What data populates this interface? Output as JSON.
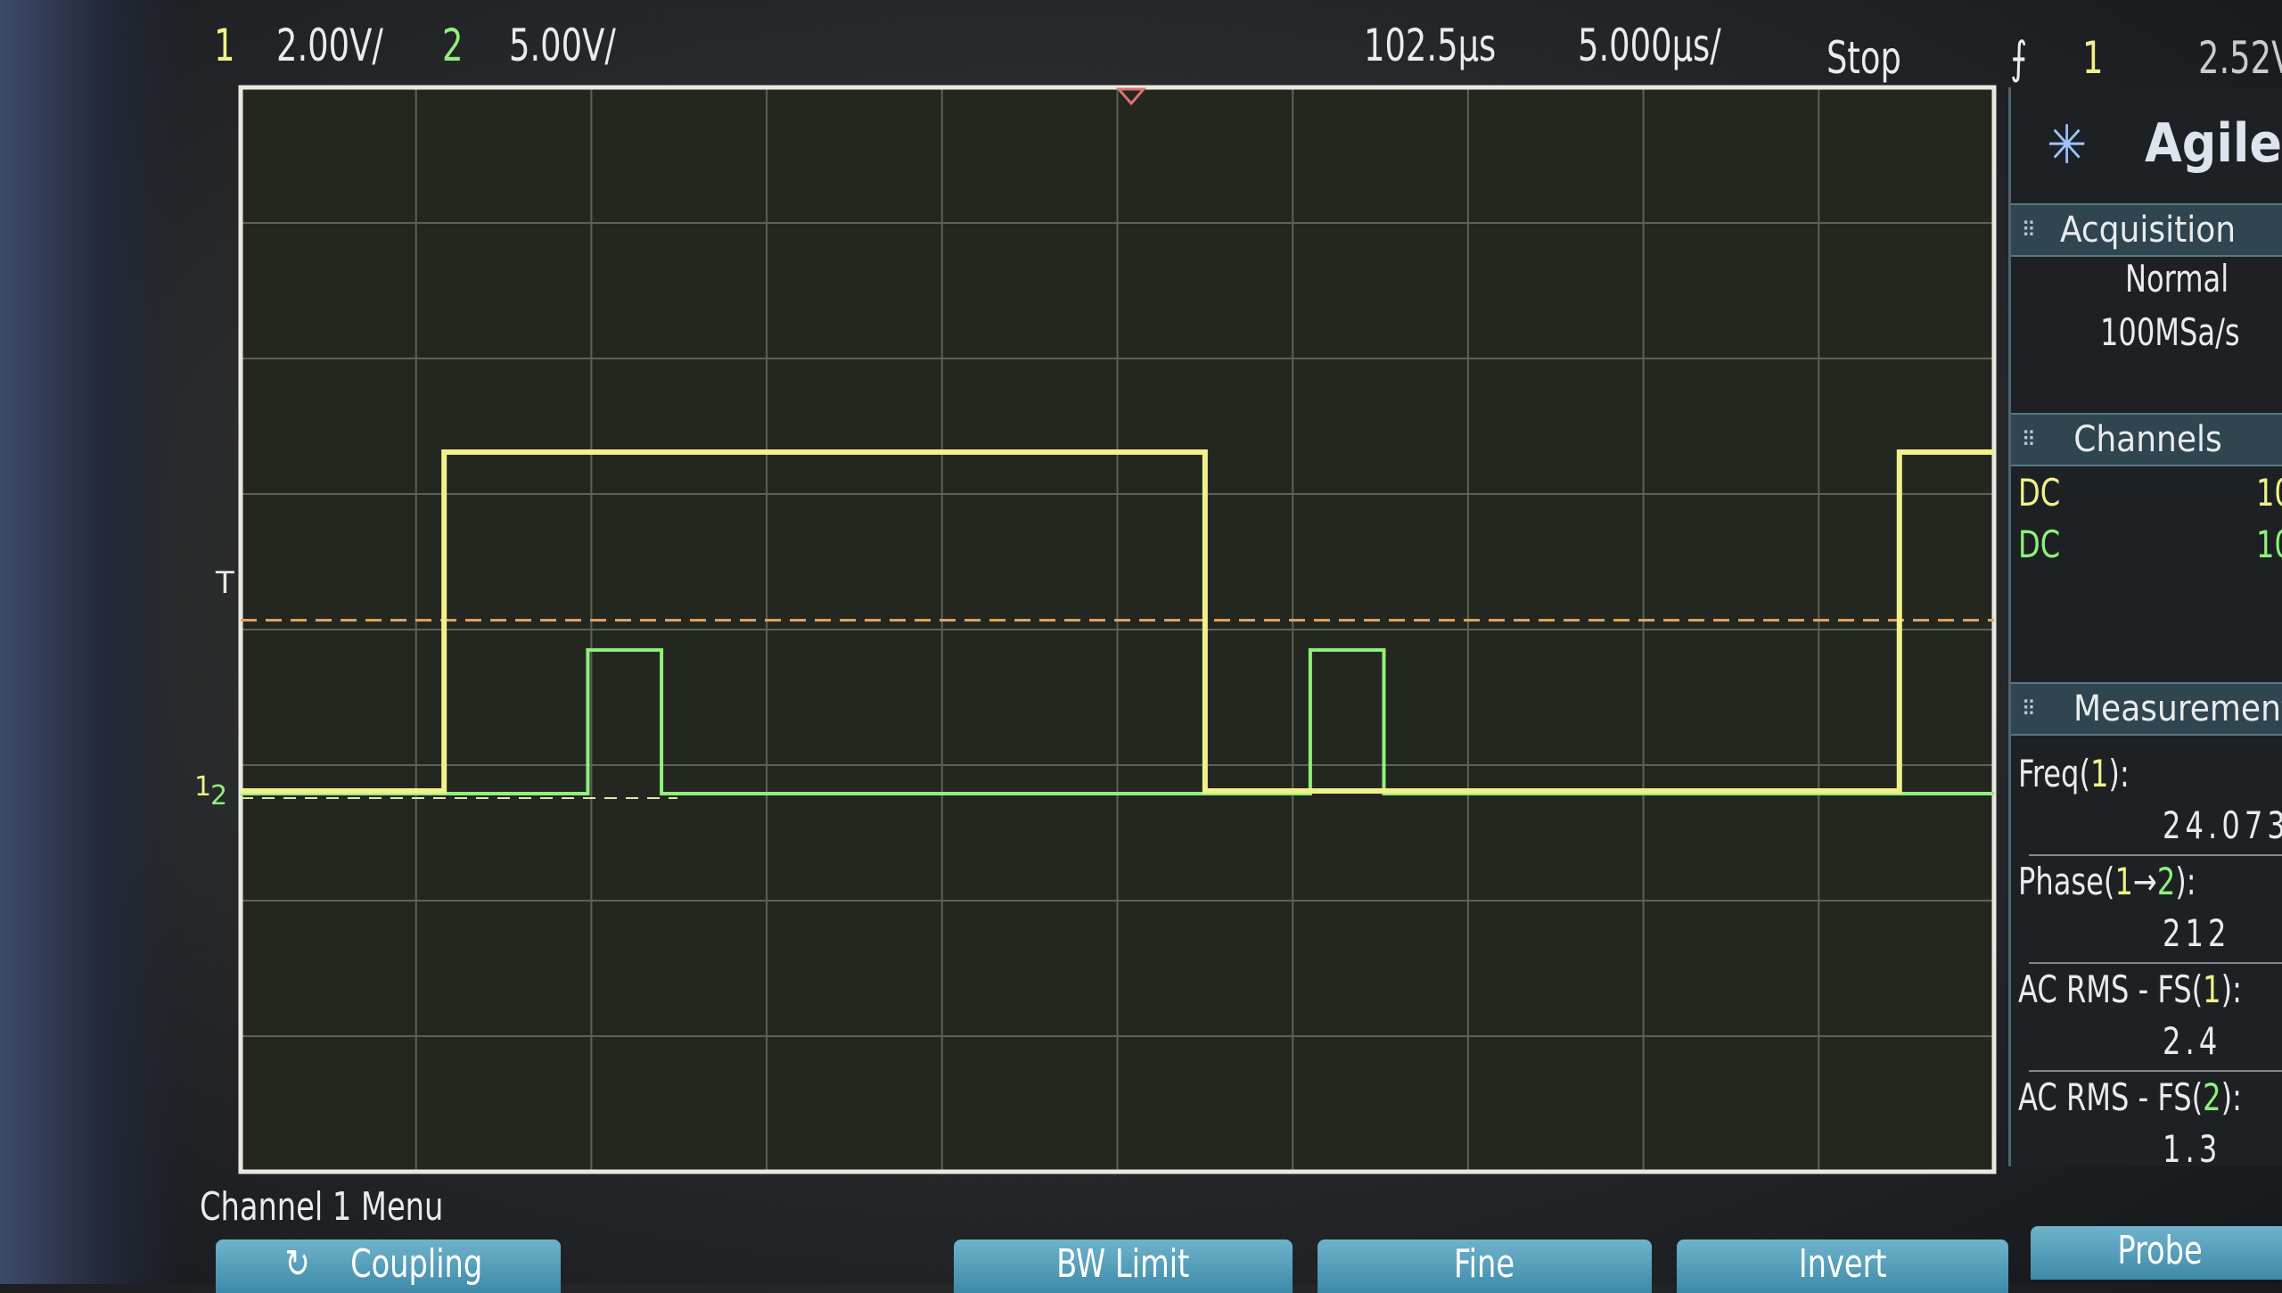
{
  "status_bar": {
    "ch1_label": "1",
    "ch1_scale": "2.00V/",
    "ch2_label": "2",
    "ch2_scale": "5.00V/",
    "time_position": "102.5µs",
    "time_scale": "5.000µs/",
    "run_state": "Stop",
    "trigger_icon": "rising-edge-icon",
    "trigger_source": "1",
    "trigger_level": "2.52V"
  },
  "brand": {
    "name": "Agilent",
    "logo_icon": "agilent-spark-icon"
  },
  "acquisition": {
    "header": "Acquisition",
    "mode": "Normal",
    "sample_rate": "100MSa/s"
  },
  "channels": {
    "header": "Channels",
    "items": [
      {
        "coupling": "DC",
        "value": "10",
        "color": "#f2f08a"
      },
      {
        "coupling": "DC",
        "value": "10",
        "color": "#8ff07a"
      }
    ]
  },
  "measurements": {
    "header": "Measurement",
    "items": [
      {
        "label_pre": "Freq(",
        "src1": "1",
        "arrow": "",
        "src2": "",
        "label_post": "):",
        "value": "24.073"
      },
      {
        "label_pre": "Phase(",
        "src1": "1",
        "arrow": "→",
        "src2": "2",
        "label_post": "):",
        "value": "212"
      },
      {
        "label_pre": "AC RMS - FS(",
        "src1": "1",
        "arrow": "",
        "src2": "",
        "label_post": "):",
        "value": "2.4"
      },
      {
        "label_pre": "AC RMS - FS(",
        "src1": "",
        "arrow": "",
        "src2": "2",
        "label_post": "):",
        "value": "1.3"
      }
    ]
  },
  "softkeys": {
    "menu_title": "Channel 1 Menu",
    "buttons": [
      "Coupling",
      "BW Limit",
      "Fine",
      "Invert",
      "Probe"
    ]
  },
  "colors": {
    "ch1": "#f2f08a",
    "ch2": "#8ff07a",
    "trigger_level": "#e0a060",
    "grid": "#5c6258"
  },
  "chart_data": {
    "type": "line",
    "x_unit": "µs",
    "x_per_div": 5,
    "x_center": 102.5,
    "x_divs": 10,
    "y_divs": 8,
    "series": [
      {
        "name": "1",
        "volts_per_div": 2.0,
        "low": 0,
        "high": 5.0,
        "edges": [
          [
            83.3,
            "rise"
          ],
          [
            105.0,
            "fall"
          ],
          [
            124.8,
            "rise"
          ]
        ]
      },
      {
        "name": "2",
        "volts_per_div": 5.0,
        "low": 0,
        "high": 5.3,
        "edges": [
          [
            87.4,
            "rise"
          ],
          [
            89.5,
            "fall"
          ],
          [
            108.0,
            "rise"
          ],
          [
            110.1,
            "fall"
          ]
        ]
      }
    ],
    "trigger_level_v": 2.52
  }
}
